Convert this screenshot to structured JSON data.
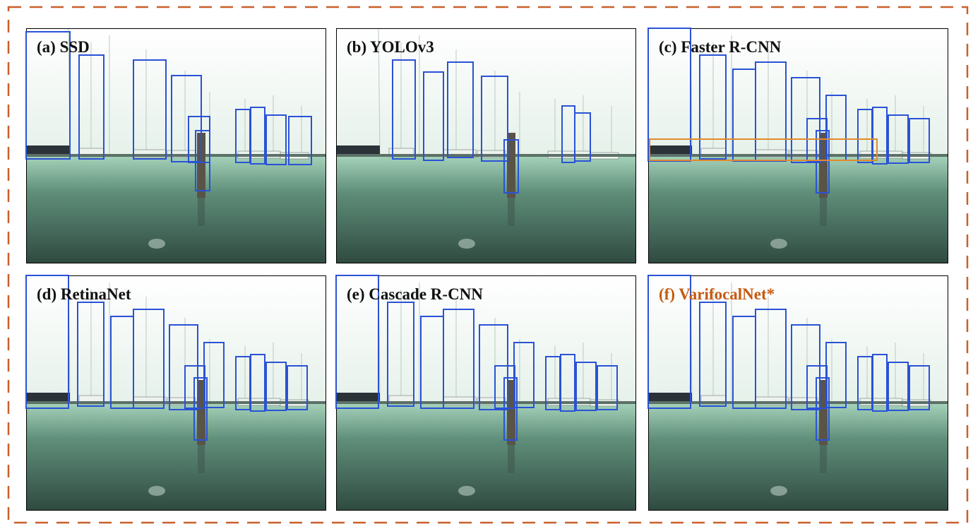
{
  "panels": [
    {
      "label": "(a) SSD"
    },
    {
      "label": "(b) YOLOv3"
    },
    {
      "label": "(c)  Faster R-CNN"
    },
    {
      "label": "(d) RetinaNet"
    },
    {
      "label": "(e) Cascade R-CNN"
    },
    {
      "label": "(f) VarifocalNet*"
    }
  ]
}
